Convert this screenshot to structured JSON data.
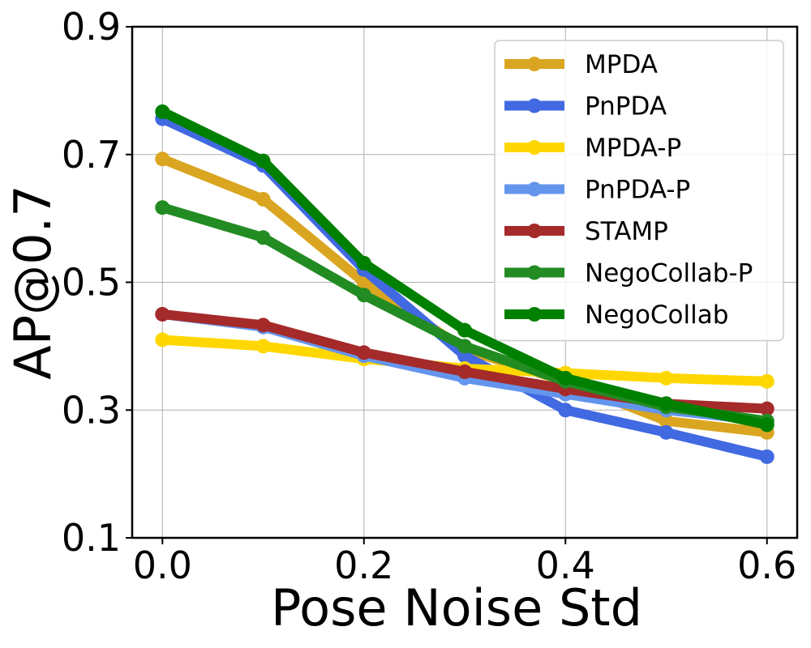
{
  "chart_data": {
    "type": "line",
    "title": "",
    "xlabel": "Pose Noise Std",
    "ylabel": "AP@0.7",
    "x": [
      0.0,
      0.1,
      0.2,
      0.3,
      0.4,
      0.5,
      0.6
    ],
    "xlim": [
      -0.03,
      0.63
    ],
    "ylim": [
      0.1,
      0.9
    ],
    "xticks": [
      0.0,
      0.2,
      0.4,
      0.6
    ],
    "xtick_labels": [
      "0.0",
      "0.2",
      "0.4",
      "0.6"
    ],
    "yticks": [
      0.1,
      0.3,
      0.5,
      0.7,
      0.9
    ],
    "ytick_labels": [
      "0.1",
      "0.3",
      "0.5",
      "0.7",
      "0.9"
    ],
    "grid": true,
    "legend_position": "top-right",
    "series": [
      {
        "name": "MPDA",
        "color": "#DAA520",
        "values": [
          0.693,
          0.63,
          0.5,
          0.395,
          0.345,
          0.283,
          0.265
        ]
      },
      {
        "name": "PnPDA",
        "color": "#4169E1",
        "values": [
          0.756,
          0.683,
          0.52,
          0.385,
          0.3,
          0.265,
          0.227
        ]
      },
      {
        "name": "MPDA-P",
        "color": "#FFD700",
        "values": [
          0.41,
          0.4,
          0.38,
          0.365,
          0.358,
          0.35,
          0.345
        ]
      },
      {
        "name": "PnPDA-P",
        "color": "#6495ED",
        "values": [
          0.45,
          0.43,
          0.385,
          0.35,
          0.325,
          0.3,
          0.283
        ]
      },
      {
        "name": "STAMP",
        "color": "#A52A2A",
        "values": [
          0.45,
          0.433,
          0.39,
          0.36,
          0.333,
          0.31,
          0.302
        ]
      },
      {
        "name": "NegoCollab-P",
        "color": "#228B22",
        "values": [
          0.617,
          0.57,
          0.48,
          0.4,
          0.345,
          0.305,
          0.283
        ]
      },
      {
        "name": "NegoCollab",
        "color": "#008000",
        "values": [
          0.767,
          0.69,
          0.53,
          0.425,
          0.35,
          0.31,
          0.277
        ]
      }
    ]
  }
}
